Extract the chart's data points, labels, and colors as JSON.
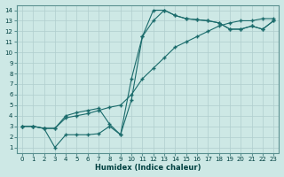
{
  "xlabel": "Humidex (Indice chaleur)",
  "bg_color": "#cde8e5",
  "grid_color": "#b0cece",
  "line_color": "#1a6b6b",
  "xlim": [
    -0.5,
    23.5
  ],
  "ylim": [
    0.5,
    14.5
  ],
  "xticks": [
    0,
    1,
    2,
    3,
    4,
    5,
    6,
    7,
    8,
    9,
    10,
    11,
    12,
    13,
    14,
    15,
    16,
    17,
    18,
    19,
    20,
    21,
    22,
    23
  ],
  "yticks": [
    1,
    2,
    3,
    4,
    5,
    6,
    7,
    8,
    9,
    10,
    11,
    12,
    13,
    14
  ],
  "line1_x": [
    0,
    1,
    2,
    3,
    4,
    5,
    6,
    7,
    8,
    9,
    10,
    11,
    12,
    13,
    14,
    15,
    16,
    17,
    18,
    19,
    20,
    21,
    22,
    23
  ],
  "line1_y": [
    3.0,
    3.0,
    2.8,
    1.0,
    2.2,
    2.2,
    2.2,
    2.3,
    3.0,
    2.2,
    5.5,
    11.5,
    14.0,
    14.0,
    13.5,
    13.2,
    13.1,
    13.0,
    12.8,
    12.2,
    12.2,
    12.5,
    12.2,
    13.0
  ],
  "line2_x": [
    0,
    1,
    2,
    3,
    4,
    5,
    6,
    7,
    8,
    9,
    10,
    11,
    12,
    13,
    14,
    15,
    16,
    17,
    18,
    19,
    20,
    21,
    22,
    23
  ],
  "line2_y": [
    3.0,
    3.0,
    2.8,
    2.8,
    4.0,
    4.3,
    4.5,
    4.7,
    3.2,
    2.2,
    7.5,
    11.5,
    13.0,
    14.0,
    13.5,
    13.2,
    13.1,
    13.0,
    12.8,
    12.2,
    12.2,
    12.5,
    12.2,
    13.0
  ],
  "line3_x": [
    0,
    1,
    2,
    3,
    4,
    5,
    6,
    7,
    8,
    9,
    10,
    11,
    12,
    13,
    14,
    15,
    16,
    17,
    18,
    19,
    20,
    21,
    22,
    23
  ],
  "line3_y": [
    3.0,
    3.0,
    2.8,
    2.8,
    3.8,
    4.0,
    4.2,
    4.5,
    4.8,
    5.0,
    6.0,
    7.5,
    8.5,
    9.5,
    10.5,
    11.0,
    11.5,
    12.0,
    12.5,
    12.8,
    13.0,
    13.0,
    13.2,
    13.2
  ]
}
